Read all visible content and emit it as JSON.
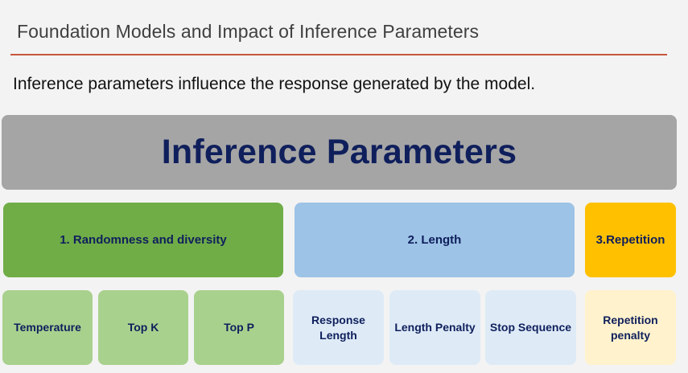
{
  "header": {
    "title": "Foundation Models and Impact of Inference Parameters"
  },
  "intro": {
    "text": "Inference parameters influence the response generated by the model."
  },
  "diagram": {
    "root": "Inference Parameters",
    "categories": [
      {
        "label": "1. Randomness and diversity",
        "color": "#70ad47",
        "params": [
          "Temperature",
          "Top K",
          "Top P"
        ],
        "param_color": "#a9d18e"
      },
      {
        "label": "2. Length",
        "color": "#9dc3e6",
        "params": [
          "Response Length",
          "Length Penalty",
          "Stop Sequence"
        ],
        "param_color": "#deebf7"
      },
      {
        "label": "3.Repetition",
        "color": "#ffc000",
        "params": [
          "Repetition penalty"
        ],
        "param_color": "#fff2cc"
      }
    ]
  },
  "colors": {
    "title_rule": "#c8553d",
    "banner": "#a5a5a5",
    "text_dark_navy": "#0f1f5c"
  }
}
